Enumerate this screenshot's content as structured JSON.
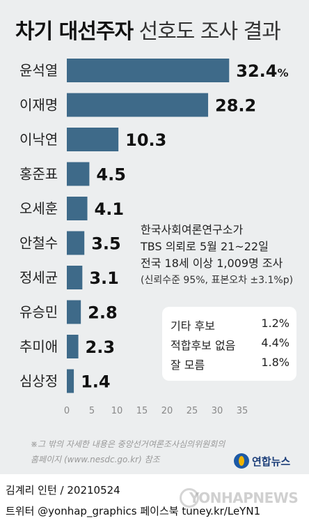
{
  "title": {
    "bold": "차기 대선주자",
    "light": "선호도 조사 결과"
  },
  "chart_data": {
    "type": "bar",
    "orientation": "horizontal",
    "categories": [
      "윤석열",
      "이재명",
      "이낙연",
      "홍준표",
      "오세훈",
      "안철수",
      "정세균",
      "유승민",
      "추미애",
      "심상정"
    ],
    "values": [
      32.4,
      28.2,
      10.3,
      4.5,
      4.1,
      3.5,
      3.1,
      2.8,
      2.3,
      1.4
    ],
    "value_labels": [
      "32.4",
      "28.2",
      "10.3",
      "4.5",
      "4.1",
      "3.5",
      "3.1",
      "2.8",
      "2.3",
      "1.4"
    ],
    "first_value_suffix": "%",
    "xlim": [
      0,
      35
    ],
    "xticks": [
      "0",
      "5",
      "10",
      "15",
      "20",
      "25",
      "30",
      "35"
    ],
    "bar_color": "#3e6a89",
    "grid": false
  },
  "note": {
    "line1": "한국사회여론연구소가",
    "line2": "TBS 의뢰로 5월 21~22일",
    "line3": "전국 18세 이상 1,009명 조사",
    "line4": "(신뢰수준 95%, 표본오차 ±3.1%p)"
  },
  "side_box": [
    {
      "label": "기타 후보",
      "value": "1.2%"
    },
    {
      "label": "적합후보 없음",
      "value": "4.4%"
    },
    {
      "label": "잘 모름",
      "value": "1.8%"
    }
  ],
  "source": {
    "line1": "※그 밖의 자세한 내용은 중앙선거여론조사심의위원회의",
    "line2": "홈페이지 (www.nesdc.go.kr) 참조"
  },
  "logo": {
    "text": "연합뉴스",
    "color": "#1d5aa6"
  },
  "credit": {
    "author": "김계리 인턴",
    "sep": " / ",
    "date": "20210524"
  },
  "social": "트위터 @yonhap_graphics  페이스북 tuney.kr/LeYN1",
  "watermark": "YONHAPNEWS"
}
